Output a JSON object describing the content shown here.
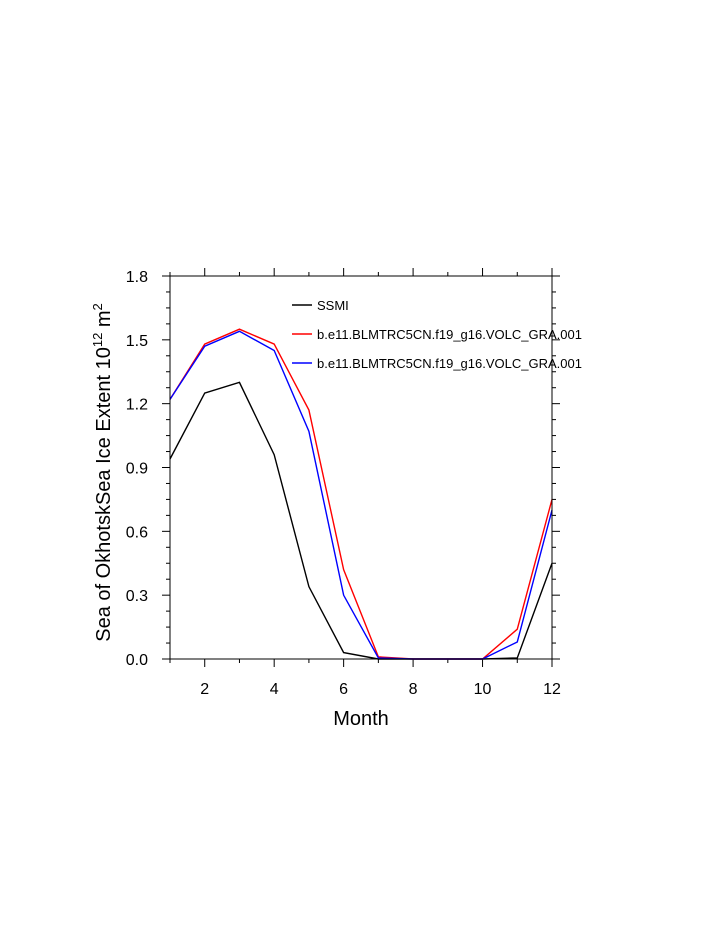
{
  "chart_data": {
    "type": "line",
    "xlabel": "Month",
    "ylabel": "Sea of OkhotskSea Ice Extent 10",
    "ylabel_exp": "12",
    "ylabel_unit": " m",
    "ylabel_unit_exp": "2",
    "xlim": [
      1,
      12
    ],
    "ylim": [
      0,
      1.8
    ],
    "x_ticks": [
      2,
      4,
      6,
      8,
      10,
      12
    ],
    "x_tick_labels": [
      "2",
      "4",
      "6",
      "8",
      "10",
      "12"
    ],
    "y_ticks": [
      0,
      0.3,
      0.6,
      0.9,
      1.2,
      1.5,
      1.8
    ],
    "y_tick_labels": [
      "0.0",
      "0.3",
      "0.6",
      "0.9",
      "1.2",
      "1.5",
      "1.8"
    ],
    "legend_position": "top-right",
    "grid": false,
    "x": [
      1,
      2,
      3,
      4,
      5,
      6,
      7,
      8,
      9,
      10,
      11,
      12
    ],
    "series": [
      {
        "name": "SSMI",
        "color": "#000000",
        "values": [
          0.94,
          1.25,
          1.3,
          0.96,
          0.34,
          0.03,
          0.0,
          0.0,
          0.0,
          0.0,
          0.005,
          0.45
        ]
      },
      {
        "name": "b.e11.BLMTRC5CN.f19_g16.VOLC_GRA.001",
        "color": "#ff0000",
        "values": [
          1.22,
          1.48,
          1.55,
          1.48,
          1.17,
          0.42,
          0.01,
          0.0,
          0.0,
          0.0,
          0.14,
          0.75
        ]
      },
      {
        "name": "b.e11.BLMTRC5CN.f19_g16.VOLC_GRA.001",
        "color": "#0000ff",
        "values": [
          1.22,
          1.47,
          1.54,
          1.45,
          1.07,
          0.3,
          0.005,
          0.0,
          0.0,
          0.0,
          0.08,
          0.7
        ]
      }
    ]
  }
}
